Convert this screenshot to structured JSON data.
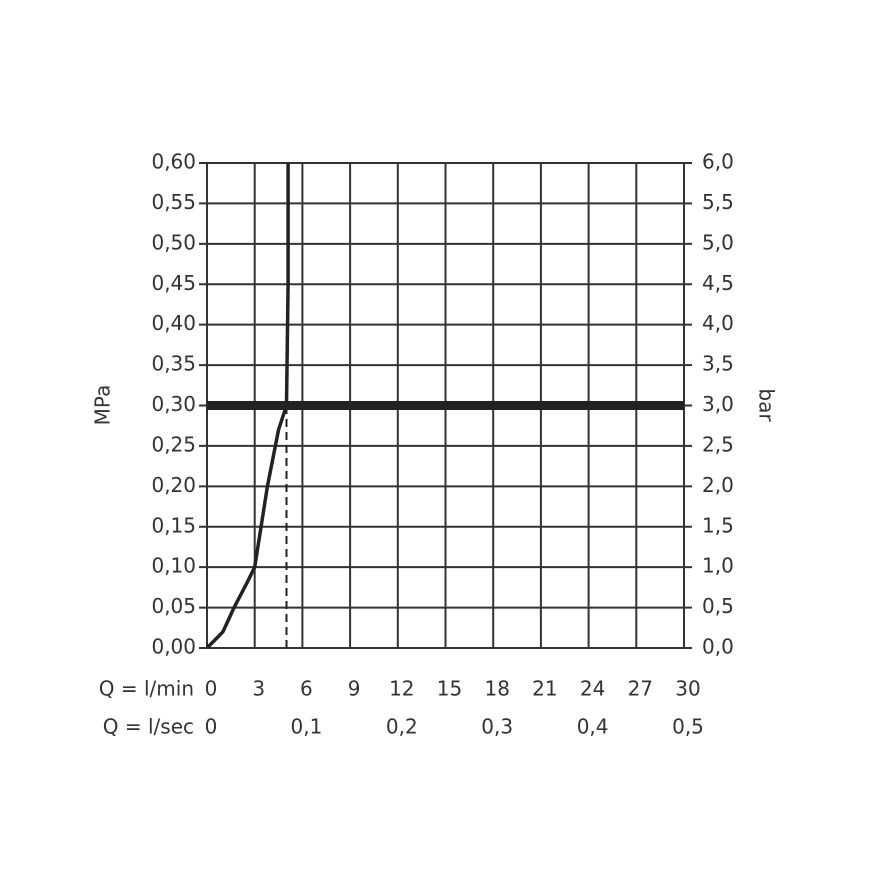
{
  "chart_data": {
    "type": "line",
    "x_label": "Q = l/min",
    "x2_label": "Q = l/sec",
    "y_label": "MPa",
    "y2_label": "bar",
    "x": [
      0,
      1,
      1.7,
      2.5,
      3,
      3.8,
      4.5,
      5,
      5.1,
      5.1
    ],
    "series": [
      {
        "color": "#222222",
        "values": [
          0,
          0.02,
          0.05,
          0.08,
          0.1,
          0.2,
          0.27,
          0.3,
          0.45,
          0.6
        ]
      }
    ],
    "reference_y": 0.3,
    "reference_x": 5,
    "xlim": [
      0,
      30
    ],
    "xticks": [
      0,
      3,
      6,
      9,
      12,
      15,
      18,
      21,
      24,
      27,
      30
    ],
    "x2lim": [
      0,
      0.5
    ],
    "x2ticks": [
      0,
      {
        "value": 0.1,
        "label": "0,1"
      },
      {
        "value": 0.2,
        "label": "0,2"
      },
      {
        "value": 0.3,
        "label": "0,3"
      },
      {
        "value": 0.4,
        "label": "0,4"
      },
      {
        "value": 0.5,
        "label": "0,5"
      }
    ],
    "ylim": [
      0,
      0.6
    ],
    "yticks": [
      {
        "value": 0,
        "label": "0,00"
      },
      {
        "value": 0.05,
        "label": "0,05"
      },
      {
        "value": 0.1,
        "label": "0,10"
      },
      {
        "value": 0.15,
        "label": "0,15"
      },
      {
        "value": 0.2,
        "label": "0,20"
      },
      {
        "value": 0.25,
        "label": "0,25"
      },
      {
        "value": 0.3,
        "label": "0,30"
      },
      {
        "value": 0.35,
        "label": "0,35"
      },
      {
        "value": 0.4,
        "label": "0,40"
      },
      {
        "value": 0.45,
        "label": "0,45"
      },
      {
        "value": 0.5,
        "label": "0,50"
      },
      {
        "value": 0.55,
        "label": "0,55"
      },
      {
        "value": 0.6,
        "label": "0,60"
      }
    ],
    "y2lim": [
      0,
      6.0
    ],
    "y2ticks": [
      {
        "value": 0,
        "label": "0,0"
      },
      {
        "value": 0.5,
        "label": "0,5"
      },
      {
        "value": 1.0,
        "label": "1,0"
      },
      {
        "value": 1.5,
        "label": "1,5"
      },
      {
        "value": 2.0,
        "label": "2,0"
      },
      {
        "value": 2.5,
        "label": "2,5"
      },
      {
        "value": 3.0,
        "label": "3,0"
      },
      {
        "value": 3.5,
        "label": "3,5"
      },
      {
        "value": 4.0,
        "label": "4,0"
      },
      {
        "value": 4.5,
        "label": "4,5"
      },
      {
        "value": 5.0,
        "label": "5,0"
      },
      {
        "value": 5.5,
        "label": "5,5"
      },
      {
        "value": 6.0,
        "label": "6,0"
      }
    ],
    "grid": true
  }
}
